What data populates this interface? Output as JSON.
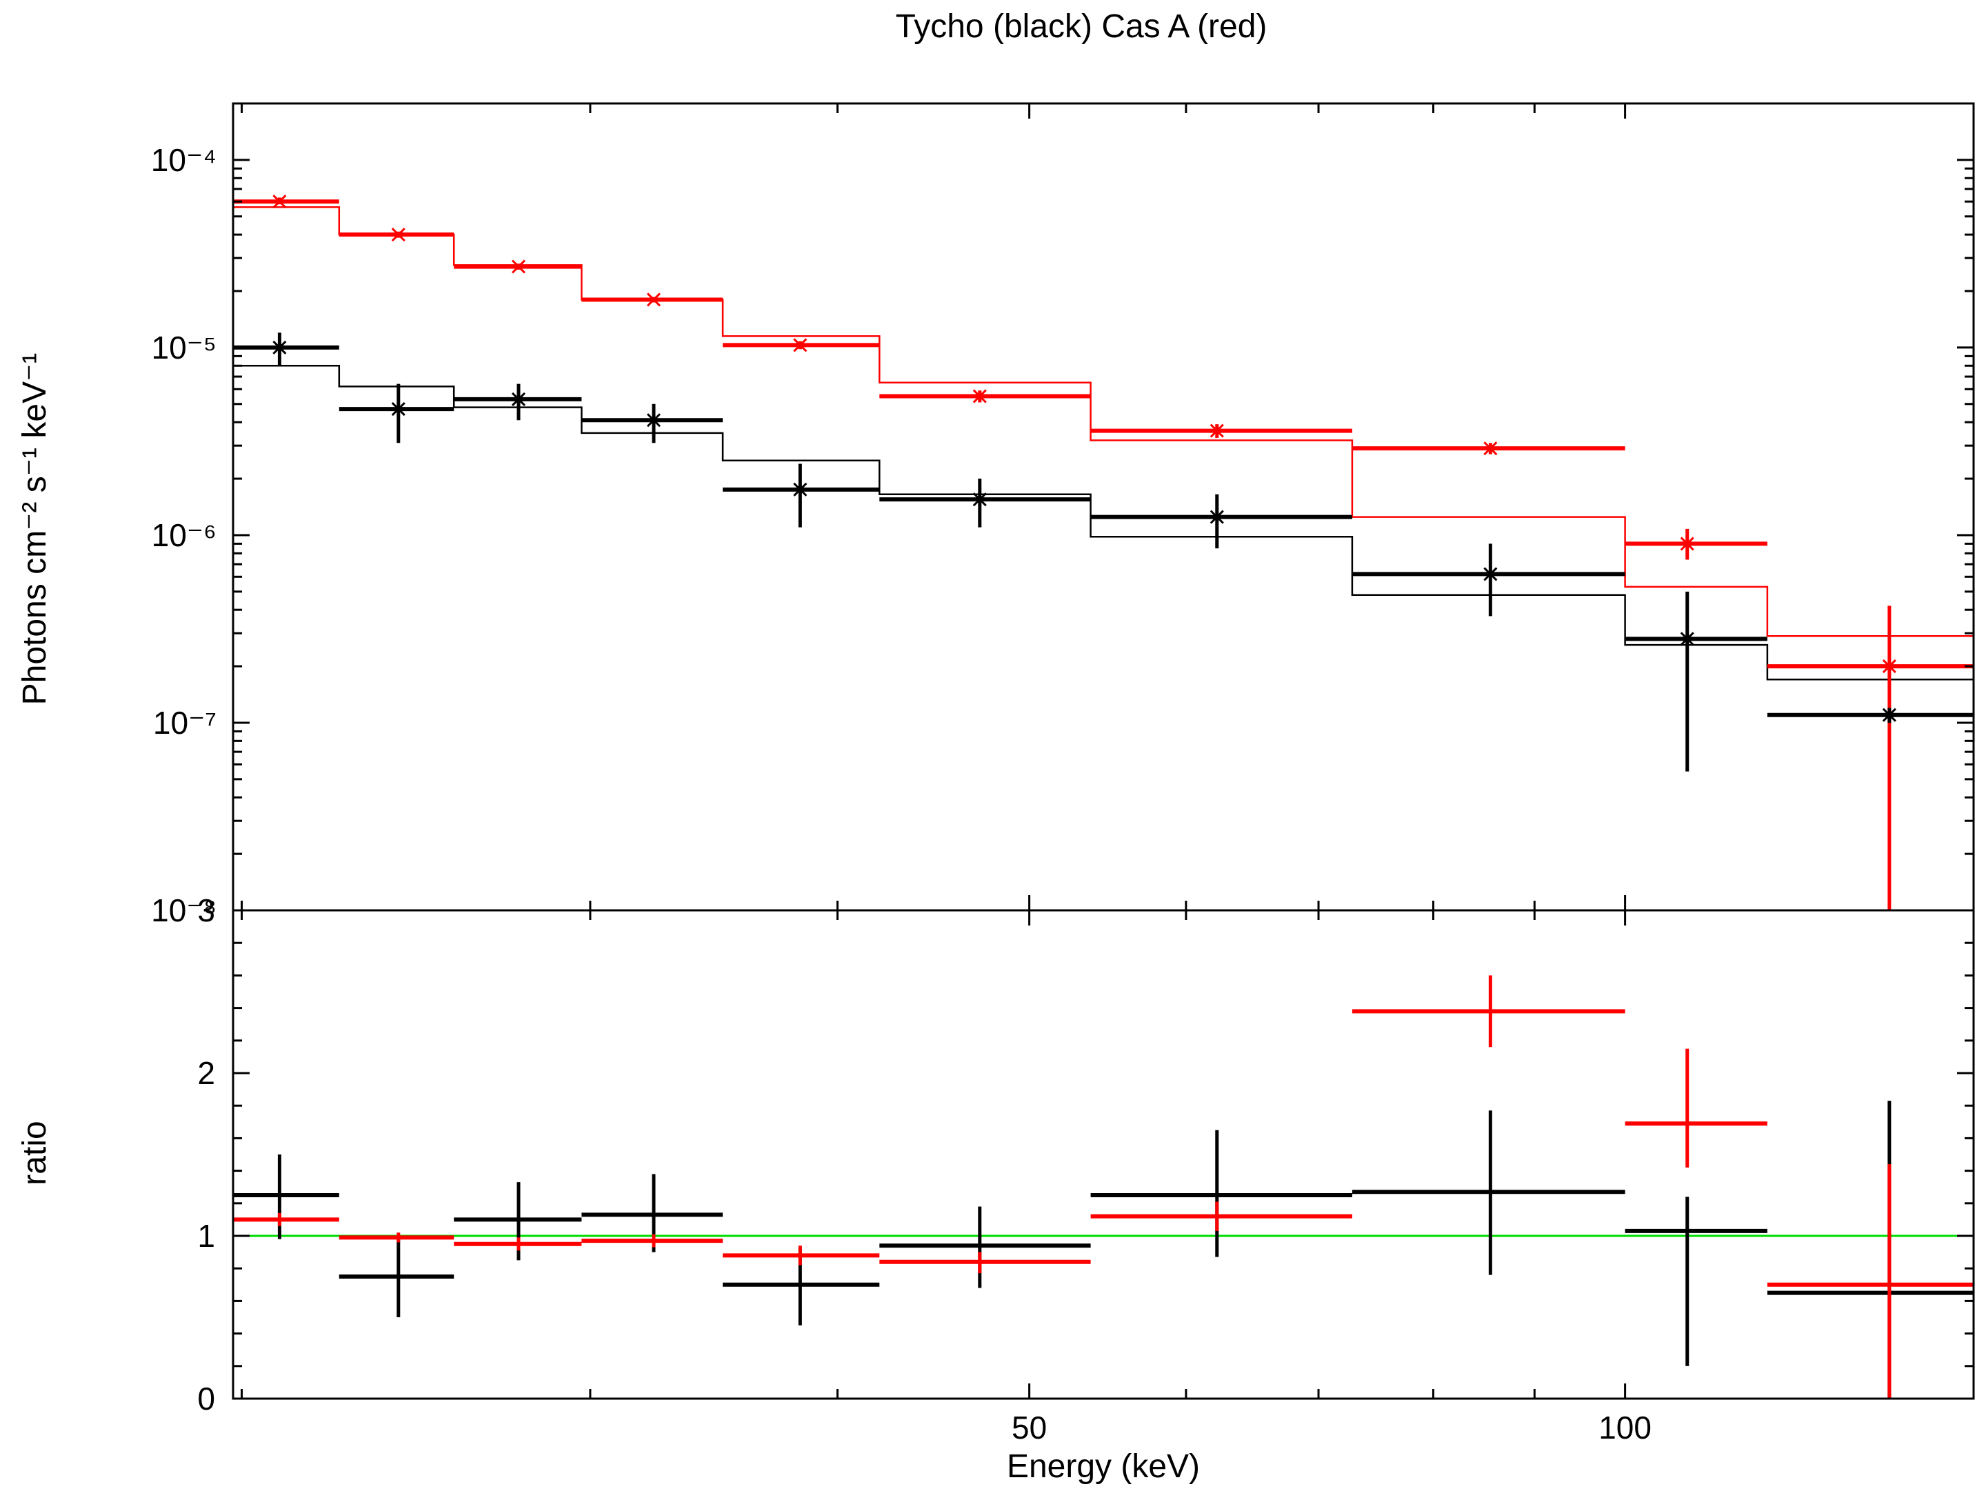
{
  "colors": {
    "tycho": "#000000",
    "casa": "#ff0000",
    "reference": "#00dd00",
    "axis": "#000000"
  },
  "chart_data": [
    {
      "type": "line",
      "panel": "spectrum",
      "title": "Tycho (black) Cas A (red)",
      "xlabel": "Energy (keV)",
      "ylabel": "Photons cm⁻² s⁻¹ keV⁻¹",
      "xscale": "log",
      "yscale": "log",
      "xlim": [
        19.8,
        150
      ],
      "ylim": [
        1e-08,
        0.0002
      ],
      "yticks": [
        {
          "value": 0.0001,
          "label": "10⁻⁴"
        },
        {
          "value": 1e-05,
          "label": "10⁻⁵"
        },
        {
          "value": 1e-06,
          "label": "10⁻⁶"
        },
        {
          "value": 1e-07,
          "label": "10⁻⁷"
        },
        {
          "value": 1e-08,
          "label": "10⁻⁸"
        }
      ],
      "bin_edges": [
        19.8,
        22.4,
        25.6,
        29.7,
        35,
        42,
        53.7,
        72.8,
        100,
        118,
        150
      ],
      "series": [
        {
          "name": "Cas A data",
          "color": "casa",
          "x": [
            20.9,
            24,
            27.6,
            32.3,
            38.3,
            47.2,
            62.2,
            85.5,
            107.5,
            136
          ],
          "values": [
            6e-05,
            4e-05,
            2.7e-05,
            1.8e-05,
            1.03e-05,
            5.5e-06,
            3.6e-06,
            2.9e-06,
            9e-07,
            2e-07
          ],
          "err_low": [
            5.8e-05,
            3.85e-05,
            2.6e-05,
            1.74e-05,
            9.8e-06,
            5.1e-06,
            3.3e-06,
            2.7e-06,
            7.4e-07,
            1e-08
          ],
          "err_high": [
            6.3e-05,
            4.15e-05,
            2.8e-05,
            1.86e-05,
            1.08e-05,
            5.9e-06,
            3.9e-06,
            3.1e-06,
            1.08e-06,
            4.2e-07
          ]
        },
        {
          "name": "Tycho data",
          "color": "tycho",
          "x": [
            20.9,
            24,
            27.6,
            32.3,
            38.3,
            47.2,
            62.2,
            85.5,
            107.5,
            136
          ],
          "values": [
            1e-05,
            4.7e-06,
            5.3e-06,
            4.1e-06,
            1.75e-06,
            1.55e-06,
            1.25e-06,
            6.2e-07,
            2.8e-07,
            1.1e-07
          ],
          "err_low": [
            8e-06,
            3.1e-06,
            4.1e-06,
            3.1e-06,
            1.1e-06,
            1.1e-06,
            8.5e-07,
            3.7e-07,
            5.5e-08,
            1e-07
          ],
          "err_high": [
            1.2e-05,
            6.4e-06,
            6.4e-06,
            5e-06,
            2.4e-06,
            2e-06,
            1.65e-06,
            9e-07,
            5e-07,
            1.2e-07
          ]
        },
        {
          "name": "Cas A model",
          "color": "casa",
          "style": "step",
          "values": [
            5.6e-05,
            4e-05,
            2.75e-05,
            1.8e-05,
            1.15e-05,
            6.5e-06,
            3.2e-06,
            1.25e-06,
            5.3e-07,
            2.9e-07
          ]
        },
        {
          "name": "Tycho model",
          "color": "tycho",
          "style": "step",
          "values": [
            8e-06,
            6.2e-06,
            4.8e-06,
            3.5e-06,
            2.5e-06,
            1.65e-06,
            9.8e-07,
            4.8e-07,
            2.6e-07,
            1.7e-07
          ]
        }
      ]
    },
    {
      "type": "line",
      "panel": "ratio",
      "xlabel": "Energy (keV)",
      "ylabel": "ratio",
      "xscale": "log",
      "xlim": [
        19.8,
        150
      ],
      "ylim": [
        0,
        3
      ],
      "yticks": [
        {
          "value": 0,
          "label": "0"
        },
        {
          "value": 1,
          "label": "1"
        },
        {
          "value": 2,
          "label": "2"
        },
        {
          "value": 3,
          "label": "3"
        }
      ],
      "xticks": [
        {
          "value": 50,
          "label": "50"
        },
        {
          "value": 100,
          "label": "100"
        }
      ],
      "reference_line": {
        "value": 1,
        "color": "reference"
      },
      "bin_edges": [
        19.8,
        22.4,
        25.6,
        29.7,
        35,
        42,
        53.7,
        72.8,
        100,
        118,
        150
      ],
      "series": [
        {
          "name": "Tycho ratio",
          "color": "tycho",
          "x": [
            20.9,
            24,
            27.6,
            32.3,
            38.3,
            47.2,
            62.2,
            85.5,
            107.5,
            136
          ],
          "values": [
            1.25,
            0.75,
            1.1,
            1.13,
            0.7,
            0.94,
            1.25,
            1.27,
            1.03,
            0.65
          ],
          "err_low": [
            0.98,
            0.5,
            0.85,
            0.9,
            0.45,
            0.68,
            0.87,
            0.76,
            0.2,
            0.0
          ],
          "err_high": [
            1.5,
            0.98,
            1.33,
            1.38,
            0.93,
            1.18,
            1.65,
            1.77,
            1.24,
            1.83
          ]
        },
        {
          "name": "Cas A ratio",
          "color": "casa",
          "x": [
            20.9,
            24,
            27.6,
            32.3,
            38.3,
            47.2,
            62.2,
            85.5,
            107.5,
            136
          ],
          "values": [
            1.1,
            0.99,
            0.95,
            0.97,
            0.88,
            0.84,
            1.12,
            2.38,
            1.69,
            0.7
          ],
          "err_low": [
            1.06,
            0.96,
            0.91,
            0.93,
            0.82,
            0.77,
            1.03,
            2.16,
            1.42,
            0.0
          ],
          "err_high": [
            1.14,
            1.02,
            0.99,
            1.01,
            0.94,
            0.9,
            1.21,
            2.6,
            2.15,
            1.44
          ]
        }
      ]
    }
  ]
}
